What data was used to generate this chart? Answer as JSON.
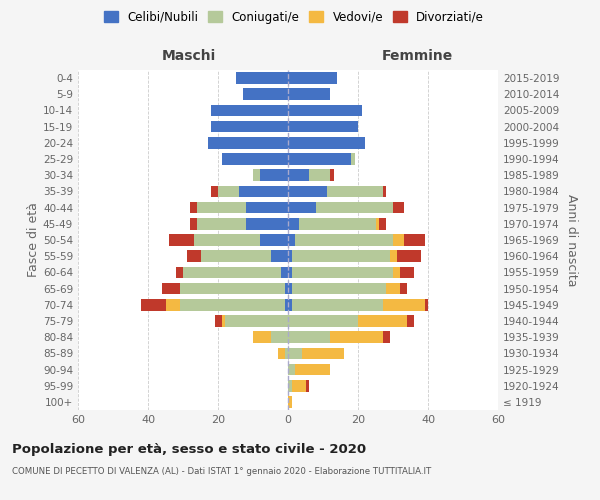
{
  "age_groups": [
    "100+",
    "95-99",
    "90-94",
    "85-89",
    "80-84",
    "75-79",
    "70-74",
    "65-69",
    "60-64",
    "55-59",
    "50-54",
    "45-49",
    "40-44",
    "35-39",
    "30-34",
    "25-29",
    "20-24",
    "15-19",
    "10-14",
    "5-9",
    "0-4"
  ],
  "birth_years": [
    "≤ 1919",
    "1920-1924",
    "1925-1929",
    "1930-1934",
    "1935-1939",
    "1940-1944",
    "1945-1949",
    "1950-1954",
    "1955-1959",
    "1960-1964",
    "1965-1969",
    "1970-1974",
    "1975-1979",
    "1980-1984",
    "1985-1989",
    "1990-1994",
    "1995-1999",
    "2000-2004",
    "2005-2009",
    "2010-2014",
    "2015-2019"
  ],
  "maschi": {
    "celibi": [
      0,
      0,
      0,
      0,
      0,
      0,
      1,
      1,
      2,
      5,
      8,
      12,
      12,
      14,
      8,
      19,
      23,
      22,
      22,
      13,
      15
    ],
    "coniugati": [
      0,
      0,
      0,
      1,
      5,
      18,
      30,
      30,
      28,
      20,
      19,
      14,
      14,
      6,
      2,
      0,
      0,
      0,
      0,
      0,
      0
    ],
    "vedovi": [
      0,
      0,
      0,
      2,
      5,
      1,
      4,
      0,
      0,
      0,
      0,
      0,
      0,
      0,
      0,
      0,
      0,
      0,
      0,
      0,
      0
    ],
    "divorziati": [
      0,
      0,
      0,
      0,
      0,
      2,
      7,
      5,
      2,
      4,
      7,
      2,
      2,
      2,
      0,
      0,
      0,
      0,
      0,
      0,
      0
    ]
  },
  "femmine": {
    "nubili": [
      0,
      0,
      0,
      0,
      0,
      0,
      1,
      1,
      1,
      1,
      2,
      3,
      8,
      11,
      6,
      18,
      22,
      20,
      21,
      12,
      14
    ],
    "coniugate": [
      0,
      1,
      2,
      4,
      12,
      20,
      26,
      27,
      29,
      28,
      28,
      22,
      22,
      16,
      6,
      1,
      0,
      0,
      0,
      0,
      0
    ],
    "vedove": [
      1,
      4,
      10,
      12,
      15,
      14,
      12,
      4,
      2,
      2,
      3,
      1,
      0,
      0,
      0,
      0,
      0,
      0,
      0,
      0,
      0
    ],
    "divorziate": [
      0,
      1,
      0,
      0,
      2,
      2,
      1,
      2,
      4,
      7,
      6,
      2,
      3,
      1,
      1,
      0,
      0,
      0,
      0,
      0,
      0
    ]
  },
  "colors": {
    "celibi": "#4472c4",
    "coniugati": "#b5c99a",
    "vedovi": "#f4b942",
    "divorziati": "#c0392b"
  },
  "xlim": 60,
  "title": "Popolazione per età, sesso e stato civile - 2020",
  "subtitle": "COMUNE DI PECETTO DI VALENZA (AL) - Dati ISTAT 1° gennaio 2020 - Elaborazione TUTTITALIA.IT",
  "ylabel_left": "Fasce di età",
  "ylabel_right": "Anni di nascita",
  "xlabel_maschi": "Maschi",
  "xlabel_femmine": "Femmine",
  "bg_color": "#f5f5f5",
  "plot_bg_color": "#ffffff"
}
